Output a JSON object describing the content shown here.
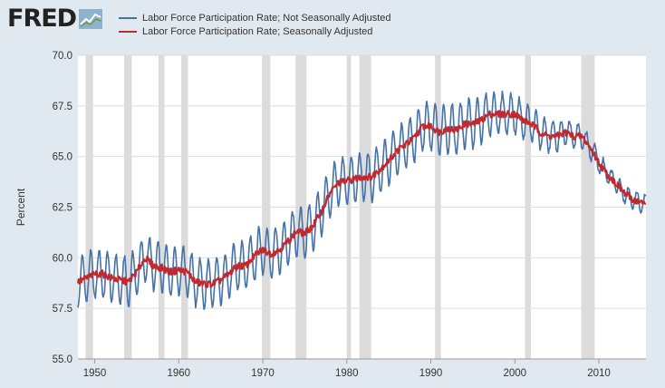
{
  "brand": {
    "logo_text": "FRED",
    "logo_icon": "fred-chart-logo-icon"
  },
  "colors": {
    "background": "#e1e9f0",
    "plot_background": "#ffffff",
    "gridline": "#dddddd",
    "recession": "#dcdcdc",
    "series_nsa": "#4572a7",
    "series_sa": "#c2282e"
  },
  "chart_data": {
    "type": "line",
    "title": "",
    "xlabel": "",
    "ylabel": "Percent",
    "xlim": [
      1948,
      2015.6
    ],
    "ylim": [
      55.0,
      70.0
    ],
    "y_ticks": [
      "55.0",
      "57.5",
      "60.0",
      "62.5",
      "65.0",
      "67.5",
      "70.0"
    ],
    "x_ticks": [
      "1950",
      "1960",
      "1970",
      "1980",
      "1990",
      "2000",
      "2010"
    ],
    "grid": true,
    "legend_position": "top",
    "recessions": [
      [
        1948.9,
        1949.8
      ],
      [
        1953.5,
        1954.4
      ],
      [
        1957.6,
        1958.3
      ],
      [
        1960.3,
        1961.1
      ],
      [
        1969.9,
        1970.9
      ],
      [
        1973.9,
        1975.2
      ],
      [
        1980.0,
        1980.5
      ],
      [
        1981.5,
        1982.9
      ],
      [
        1990.5,
        1991.2
      ],
      [
        2001.2,
        2001.9
      ],
      [
        2007.9,
        2009.5
      ]
    ],
    "series": [
      {
        "name": "Labor Force Participation Rate; Not Seasonally Adjusted",
        "color": "#4572a7",
        "seasonal_amplitude": 1.2,
        "x": [
          1948,
          1949,
          1950,
          1951,
          1952,
          1953,
          1954,
          1955,
          1956,
          1957,
          1958,
          1959,
          1960,
          1961,
          1962,
          1963,
          1964,
          1965,
          1966,
          1967,
          1968,
          1969,
          1970,
          1971,
          1972,
          1973,
          1974,
          1975,
          1976,
          1977,
          1978,
          1979,
          1980,
          1981,
          1982,
          1983,
          1984,
          1985,
          1986,
          1987,
          1988,
          1989,
          1990,
          1991,
          1992,
          1993,
          1994,
          1995,
          1996,
          1997,
          1998,
          1999,
          2000,
          2001,
          2002,
          2003,
          2004,
          2005,
          2006,
          2007,
          2008,
          2009,
          2010,
          2011,
          2012,
          2013,
          2014,
          2015
        ],
        "y": [
          58.8,
          59.0,
          59.2,
          59.2,
          59.0,
          58.9,
          58.8,
          59.3,
          60.0,
          59.6,
          59.5,
          59.3,
          59.4,
          59.3,
          58.8,
          58.7,
          58.7,
          58.9,
          59.2,
          59.6,
          59.6,
          60.1,
          60.4,
          60.2,
          60.4,
          60.8,
          61.3,
          61.2,
          61.6,
          62.3,
          63.2,
          63.7,
          63.8,
          63.9,
          64.0,
          64.0,
          64.4,
          64.8,
          65.3,
          65.6,
          65.9,
          66.5,
          66.5,
          66.2,
          66.4,
          66.3,
          66.6,
          66.6,
          66.8,
          67.1,
          67.1,
          67.1,
          67.1,
          66.8,
          66.6,
          66.2,
          66.0,
          66.0,
          66.2,
          66.0,
          66.0,
          65.4,
          64.7,
          64.1,
          63.7,
          63.2,
          62.9,
          62.7
        ]
      },
      {
        "name": "Labor Force Participation Rate; Seasonally Adjusted",
        "color": "#c2282e",
        "seasonal_amplitude": 0,
        "x": [
          1948,
          1949,
          1950,
          1951,
          1952,
          1953,
          1954,
          1955,
          1956,
          1957,
          1958,
          1959,
          1960,
          1961,
          1962,
          1963,
          1964,
          1965,
          1966,
          1967,
          1968,
          1969,
          1970,
          1971,
          1972,
          1973,
          1974,
          1975,
          1976,
          1977,
          1978,
          1979,
          1980,
          1981,
          1982,
          1983,
          1984,
          1985,
          1986,
          1987,
          1988,
          1989,
          1990,
          1991,
          1992,
          1993,
          1994,
          1995,
          1996,
          1997,
          1998,
          1999,
          2000,
          2001,
          2002,
          2003,
          2004,
          2005,
          2006,
          2007,
          2008,
          2009,
          2010,
          2011,
          2012,
          2013,
          2014,
          2015
        ],
        "y": [
          58.8,
          59.0,
          59.2,
          59.2,
          59.0,
          58.9,
          58.8,
          59.3,
          60.0,
          59.6,
          59.5,
          59.3,
          59.4,
          59.3,
          58.8,
          58.7,
          58.7,
          58.9,
          59.2,
          59.6,
          59.6,
          60.1,
          60.4,
          60.2,
          60.4,
          60.8,
          61.3,
          61.2,
          61.6,
          62.3,
          63.2,
          63.7,
          63.8,
          63.9,
          64.0,
          64.0,
          64.4,
          64.8,
          65.3,
          65.6,
          65.9,
          66.5,
          66.5,
          66.2,
          66.4,
          66.3,
          66.6,
          66.6,
          66.8,
          67.1,
          67.1,
          67.1,
          67.1,
          66.8,
          66.6,
          66.2,
          66.0,
          66.0,
          66.2,
          66.0,
          66.0,
          65.4,
          64.7,
          64.1,
          63.7,
          63.2,
          62.9,
          62.7
        ]
      }
    ]
  }
}
